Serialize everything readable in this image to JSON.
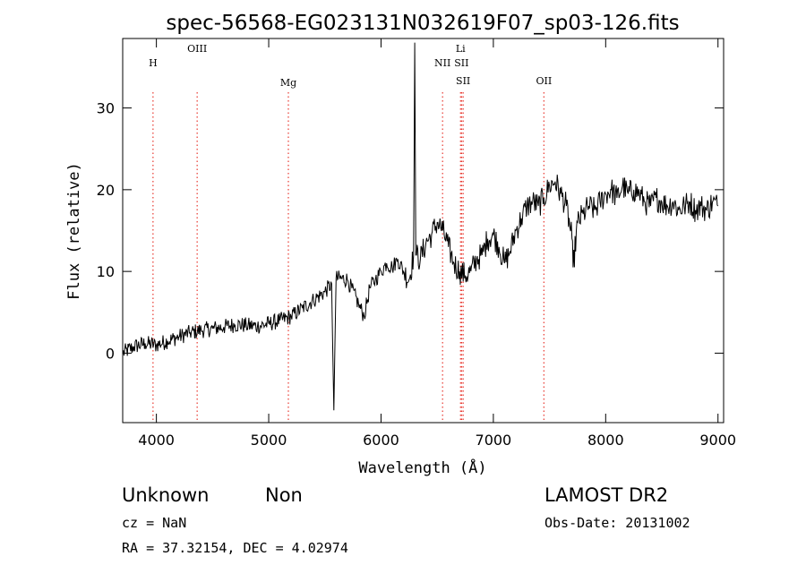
{
  "chart_data": {
    "type": "line",
    "title": "spec-56568-EG023131N032619F07_sp03-126.fits",
    "xlabel": "Wavelength (Å)",
    "ylabel": "Flux (relative)",
    "xlim": [
      3700,
      9050
    ],
    "ylim": [
      -8.5,
      38.5
    ],
    "xticks": [
      4000,
      5000,
      6000,
      7000,
      8000,
      9000
    ],
    "yticks": [
      0,
      10,
      20,
      30
    ],
    "grid": false,
    "line_markers": [
      {
        "label": "H",
        "x": 3970
      },
      {
        "label": "OIII",
        "x": 4363
      },
      {
        "label": "Mg",
        "x": 5175
      },
      {
        "label": "NII",
        "x": 6548
      },
      {
        "label": "Li",
        "x": 6708
      },
      {
        "label": "SII",
        "x": 6717
      },
      {
        "label": "SII",
        "x": 6731
      },
      {
        "label": "OII",
        "x": 7450
      }
    ],
    "series": [
      {
        "color": "#000000",
        "x": [
          3700,
          3800,
          3900,
          4000,
          4100,
          4200,
          4300,
          4400,
          4500,
          4600,
          4700,
          4800,
          4900,
          5000,
          5100,
          5200,
          5300,
          5400,
          5500,
          5560,
          5580,
          5600,
          5700,
          5800,
          5850,
          5900,
          5950,
          6000,
          6050,
          6100,
          6150,
          6200,
          6250,
          6290,
          6300,
          6310,
          6350,
          6400,
          6450,
          6500,
          6550,
          6600,
          6650,
          6700,
          6750,
          6800,
          6850,
          6900,
          6950,
          7000,
          7050,
          7100,
          7150,
          7200,
          7250,
          7300,
          7350,
          7400,
          7450,
          7500,
          7550,
          7600,
          7650,
          7700,
          7710,
          7750,
          7800,
          7850,
          7900,
          7950,
          8000,
          8050,
          8100,
          8150,
          8200,
          8250,
          8300,
          8350,
          8400,
          8450,
          8500,
          8550,
          8600,
          8650,
          8700,
          8750,
          8800,
          8850,
          8900,
          8950,
          9000
        ],
        "y": [
          0,
          0.8,
          1.2,
          1.0,
          1.5,
          2.0,
          2.5,
          2.8,
          3.0,
          3.2,
          3.5,
          3.4,
          3.3,
          3.6,
          4.0,
          4.5,
          5.5,
          6.5,
          7.5,
          8.5,
          -7.0,
          9.2,
          9.0,
          6.0,
          4.5,
          8.0,
          9.0,
          10.0,
          11.0,
          10.5,
          11.5,
          10.0,
          9.0,
          12.0,
          38.0,
          12.0,
          11.5,
          13.5,
          14.5,
          16.0,
          15.0,
          13.0,
          11.0,
          10.0,
          9.5,
          10.0,
          11.5,
          12.0,
          14.0,
          14.5,
          13.0,
          11.0,
          12.5,
          15.0,
          16.5,
          18.0,
          18.5,
          18.0,
          19.0,
          20.5,
          21.0,
          19.5,
          18.0,
          14.0,
          10.5,
          16.0,
          17.0,
          18.0,
          17.5,
          18.5,
          19.5,
          20.0,
          19.0,
          20.5,
          19.5,
          20.0,
          19.5,
          18.5,
          18.0,
          19.0,
          18.5,
          18.0,
          18.5,
          17.5,
          18.0,
          18.5,
          17.5,
          18.0,
          17.5,
          18.5,
          18.0
        ]
      }
    ]
  },
  "footer": {
    "class_label": "Unknown",
    "subclass_label": "Non",
    "cz": "cz = NaN",
    "coords": "RA =  37.32154, DEC =   4.02974",
    "survey": "LAMOST DR2",
    "obs_date": "Obs-Date: 20131002"
  },
  "colors": {
    "axes": "#000000",
    "marker_line": "#e8382f",
    "background": "#ffffff"
  }
}
